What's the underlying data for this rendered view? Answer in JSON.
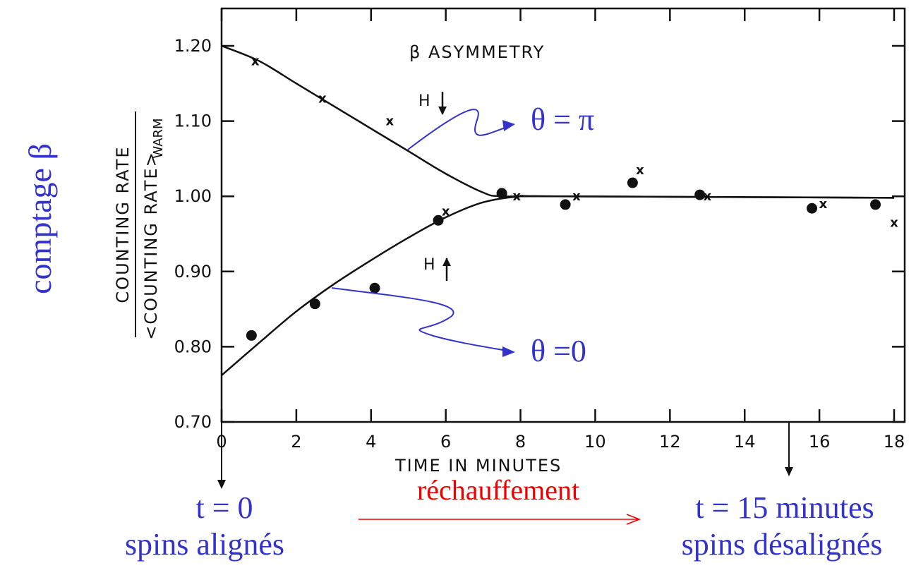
{
  "chart_data": {
    "type": "scatter",
    "title": "β ASYMMETRY",
    "xlabel": "TIME IN MINUTES",
    "ylabel": {
      "numerator": "COUNTING RATE",
      "denominator": "<COUNTING RATE>",
      "denominator_subscript": "WARM"
    },
    "xlim": [
      0,
      18
    ],
    "ylim": [
      0.7,
      1.25
    ],
    "x_ticks": [
      "0",
      "2",
      "4",
      "6",
      "8",
      "10",
      "12",
      "14",
      "16",
      "18"
    ],
    "y_ticks": [
      "0.70",
      "0.80",
      "0.90",
      "1.00",
      "1.10",
      "1.20"
    ],
    "x_tick_values": [
      0,
      2,
      4,
      6,
      8,
      10,
      12,
      14,
      16,
      18
    ],
    "y_tick_values": [
      0.7,
      0.8,
      0.9,
      1.0,
      1.1,
      1.2
    ],
    "legend": "none",
    "series": [
      {
        "name": "H↓",
        "marker": "x",
        "points": [
          [
            0.9,
            1.18
          ],
          [
            2.7,
            1.13
          ],
          [
            4.5,
            1.1
          ],
          [
            6.0,
            0.98
          ],
          [
            7.9,
            1.0
          ],
          [
            9.5,
            1.0
          ],
          [
            11.2,
            1.035
          ],
          [
            13.0,
            1.0
          ],
          [
            16.1,
            0.99
          ],
          [
            18.0,
            0.965
          ]
        ],
        "fit_curve": [
          [
            0,
            1.2
          ],
          [
            1,
            1.18
          ],
          [
            2,
            1.15
          ],
          [
            3,
            1.12
          ],
          [
            4,
            1.09
          ],
          [
            5,
            1.06
          ],
          [
            6,
            1.03
          ],
          [
            7,
            1.005
          ],
          [
            7.5,
            1.0
          ],
          [
            9,
            1.0
          ],
          [
            18,
            0.998
          ]
        ]
      },
      {
        "name": "H↑",
        "marker": "dot",
        "points": [
          [
            0.8,
            0.815
          ],
          [
            2.5,
            0.857
          ],
          [
            4.1,
            0.878
          ],
          [
            5.8,
            0.968
          ],
          [
            7.5,
            1.004
          ],
          [
            9.2,
            0.989
          ],
          [
            11.0,
            1.018
          ],
          [
            12.8,
            1.002
          ],
          [
            15.8,
            0.984
          ],
          [
            17.5,
            0.989
          ]
        ],
        "fit_curve": [
          [
            0,
            0.762
          ],
          [
            1,
            0.805
          ],
          [
            2,
            0.847
          ],
          [
            3,
            0.883
          ],
          [
            4,
            0.915
          ],
          [
            5,
            0.945
          ],
          [
            6,
            0.972
          ],
          [
            7,
            0.992
          ],
          [
            8,
            1.0
          ],
          [
            9,
            1.0
          ],
          [
            18,
            0.998
          ]
        ]
      }
    ],
    "field_labels": [
      "H",
      "H"
    ],
    "colors": {
      "curve": "#111111",
      "note_blue": "#3333cc",
      "note_red": "#ee0000"
    }
  },
  "annotations": {
    "y_side_label": "comptage β",
    "theta_pi": "θ = π",
    "theta_zero": "θ =0",
    "start_time": "t = 0",
    "start_state": "spins alignés",
    "warming": "réchauffement",
    "end_time": "t = 15 minutes",
    "end_state": "spins désalignés"
  }
}
